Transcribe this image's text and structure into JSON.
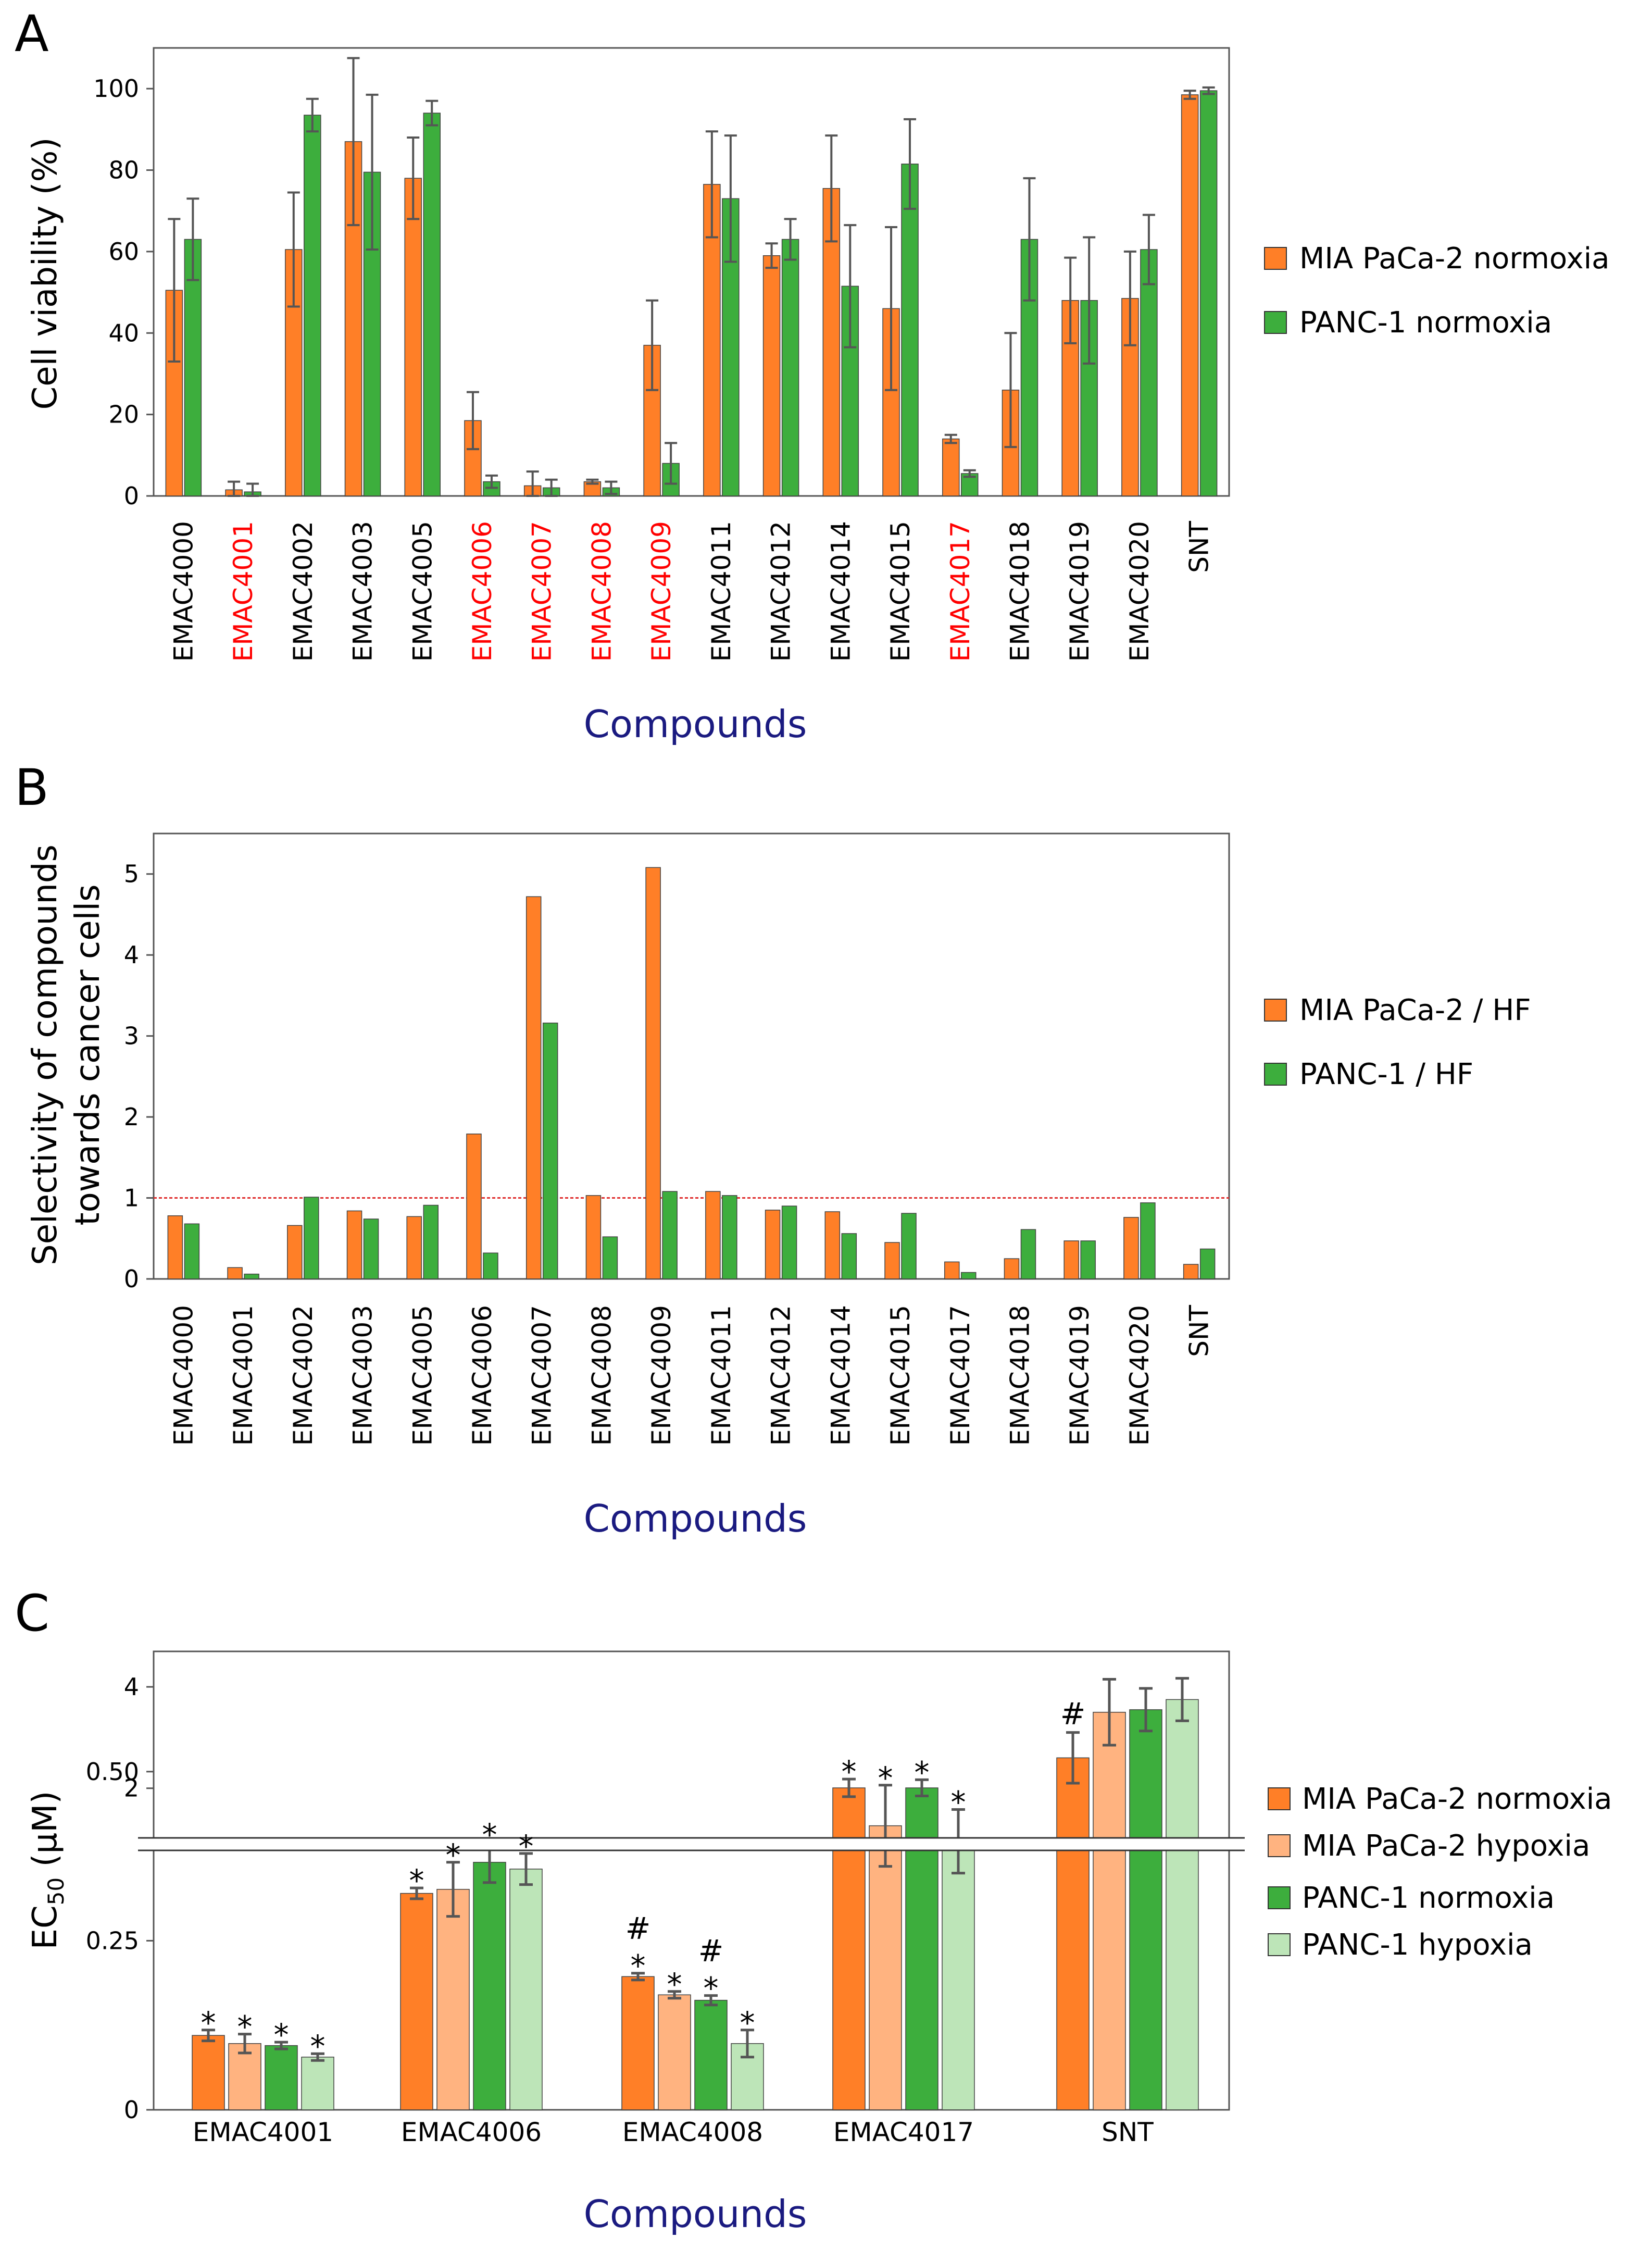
{
  "chart_data": [
    {
      "panel": "A",
      "type": "bar",
      "ylabel": "Cell viability (%)",
      "xlabel": "Compounds",
      "ylim": [
        0,
        110
      ],
      "yticks": [
        0,
        20,
        40,
        60,
        80,
        100
      ],
      "categories": [
        "EMAC4000",
        "EMAC4001",
        "EMAC4002",
        "EMAC4003",
        "EMAC4005",
        "EMAC4006",
        "EMAC4007",
        "EMAC4008",
        "EMAC4009",
        "EMAC4011",
        "EMAC4012",
        "EMAC4014",
        "EMAC4015",
        "EMAC4017",
        "EMAC4018",
        "EMAC4019",
        "EMAC4020",
        "SNT"
      ],
      "highlight_categories": [
        "EMAC4001",
        "EMAC4006",
        "EMAC4007",
        "EMAC4008",
        "EMAC4009",
        "EMAC4017"
      ],
      "highlight_color": "#ff0000",
      "series": [
        {
          "name": "MIA PaCa-2 normoxia",
          "color": "#ff7f27",
          "values": [
            50.5,
            1.5,
            60.5,
            87,
            78,
            18.5,
            2.5,
            3.5,
            37,
            76.5,
            59,
            75.5,
            46,
            14,
            26,
            48,
            48.5,
            98.5
          ],
          "errors": [
            17.5,
            2,
            14,
            20.5,
            10,
            7,
            3.5,
            0.5,
            11,
            13,
            3,
            13,
            20,
            1,
            14,
            10.5,
            11.5,
            1
          ]
        },
        {
          "name": "PANC-1 normoxia",
          "color": "#3dae3d",
          "values": [
            63,
            1,
            93.5,
            79.5,
            94,
            3.5,
            2,
            2,
            8,
            73,
            63,
            51.5,
            81.5,
            5.5,
            63,
            48,
            60.5,
            99.5
          ],
          "errors": [
            10,
            2,
            4,
            19,
            3,
            1.5,
            2,
            1.5,
            5,
            15.5,
            5,
            15,
            11,
            0.8,
            15,
            15.5,
            8.5,
            0.8
          ]
        }
      ]
    },
    {
      "panel": "B",
      "type": "bar",
      "ylabel_line1": "Selectivity of compounds",
      "ylabel_line2": "towards cancer cells",
      "xlabel": "Compounds",
      "ylim": [
        0,
        5.5
      ],
      "yticks": [
        0,
        1,
        2,
        3,
        4,
        5
      ],
      "reference_line": 1,
      "reference_color": "#e03030",
      "categories": [
        "EMAC4000",
        "EMAC4001",
        "EMAC4002",
        "EMAC4003",
        "EMAC4005",
        "EMAC4006",
        "EMAC4007",
        "EMAC4008",
        "EMAC4009",
        "EMAC4011",
        "EMAC4012",
        "EMAC4014",
        "EMAC4015",
        "EMAC4017",
        "EMAC4018",
        "EMAC4019",
        "EMAC4020",
        "SNT"
      ],
      "series": [
        {
          "name": "MIA PaCa-2 / HF",
          "color": "#ff7f27",
          "values": [
            0.78,
            0.14,
            0.66,
            0.84,
            0.77,
            1.79,
            4.72,
            1.03,
            5.08,
            1.08,
            0.85,
            0.83,
            0.45,
            0.21,
            0.25,
            0.47,
            0.76,
            0.18
          ]
        },
        {
          "name": "PANC-1 / HF",
          "color": "#3dae3d",
          "values": [
            0.68,
            0.06,
            1.01,
            0.74,
            0.91,
            0.32,
            3.16,
            0.52,
            1.08,
            1.03,
            0.9,
            0.56,
            0.81,
            0.08,
            0.61,
            0.47,
            0.94,
            0.37
          ]
        }
      ]
    },
    {
      "panel": "C",
      "type": "bar",
      "ylabel_main": "EC",
      "ylabel_sub": "50",
      "ylabel_unit": " (µM)",
      "xlabel": "Compounds",
      "axis_break": true,
      "lower_ylim": [
        0,
        0.62
      ],
      "lower_yticks": [
        0,
        0.25,
        0.5
      ],
      "lower_ytick_labels": [
        "0",
        "0.25",
        "0.50"
      ],
      "upper_ylim": [
        1.0,
        4.7
      ],
      "upper_yticks": [
        2,
        4
      ],
      "upper_ytick_labels": [
        "2",
        "4"
      ],
      "categories": [
        "EMAC4001",
        "EMAC4006",
        "EMAC4008",
        "EMAC4017",
        "SNT"
      ],
      "series": [
        {
          "name": "MIA PaCa-2 normoxia",
          "color": "#ff7f27",
          "values": [
            0.11,
            0.32,
            0.197,
            0.476,
            2.6
          ],
          "errors": [
            0.008,
            0.008,
            0.005,
            0.013,
            0.5
          ],
          "marks": [
            "*",
            "*",
            "#\n*",
            "*",
            "#"
          ]
        },
        {
          "name": "MIA PaCa-2 hypoxia",
          "color": "#ffb380",
          "values": [
            0.098,
            0.326,
            0.17,
            0.42,
            3.5
          ],
          "errors": [
            0.014,
            0.04,
            0.005,
            0.06,
            0.65
          ],
          "marks": [
            "*",
            "*",
            "*",
            "*",
            ""
          ]
        },
        {
          "name": "PANC-1 normoxia",
          "color": "#3dae3d",
          "values": [
            0.095,
            0.366,
            0.162,
            0.476,
            3.55
          ],
          "errors": [
            0.005,
            0.03,
            0.007,
            0.012,
            0.42
          ],
          "marks": [
            "*",
            "*",
            "#\n*",
            "*",
            ""
          ]
        },
        {
          "name": "PANC-1 hypoxia",
          "color": "#bde5b8",
          "values": [
            0.078,
            0.356,
            0.098,
            0.397,
            3.75
          ],
          "errors": [
            0.005,
            0.023,
            0.02,
            0.047,
            0.42
          ],
          "marks": [
            "*",
            "*",
            "*",
            "*",
            ""
          ]
        }
      ]
    }
  ]
}
